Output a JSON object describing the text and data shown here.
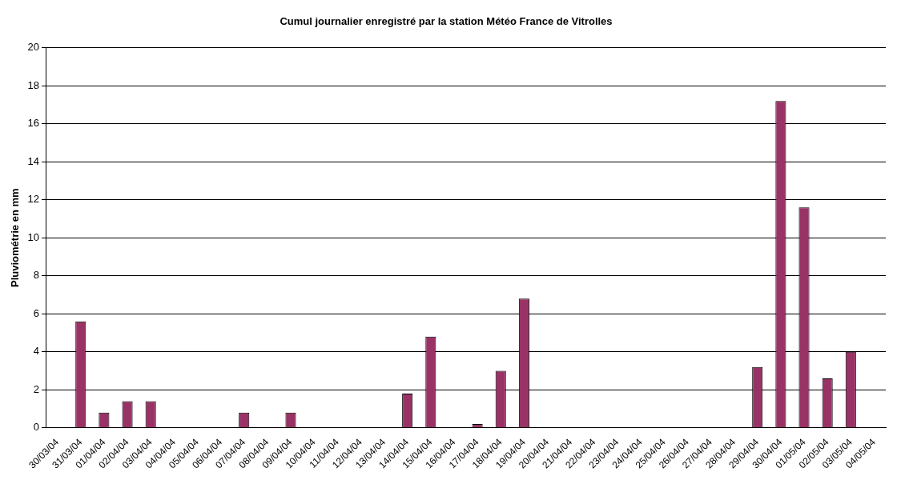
{
  "chart_data": {
    "type": "bar",
    "title": "Cumul journalier enregistré par la station Météo France de Vitrolles",
    "ylabel": "Pluviométrie en mm",
    "categories": [
      "30/03/04",
      "31/03/04",
      "01/04/04",
      "02/04/04",
      "03/04/04",
      "04/04/04",
      "05/04/04",
      "06/04/04",
      "07/04/04",
      "08/04/04",
      "09/04/04",
      "10/04/04",
      "11/04/04",
      "12/04/04",
      "13/04/04",
      "14/04/04",
      "15/04/04",
      "16/04/04",
      "17/04/04",
      "18/04/04",
      "19/04/04",
      "20/04/04",
      "21/04/04",
      "22/04/04",
      "23/04/04",
      "24/04/04",
      "25/04/04",
      "26/04/04",
      "27/04/04",
      "28/04/04",
      "29/04/04",
      "30/04/04",
      "01/05/04",
      "02/05/04",
      "03/05/04",
      "04/05/04"
    ],
    "values": [
      0,
      5.6,
      0.8,
      1.4,
      1.4,
      0,
      0,
      0,
      0.8,
      0,
      0.8,
      0,
      0,
      0,
      0,
      1.8,
      4.8,
      0,
      0.2,
      3.0,
      6.8,
      0,
      0,
      0,
      0,
      0,
      0,
      0,
      0,
      0,
      3.2,
      17.2,
      11.6,
      2.6,
      4.0,
      0
    ],
    "color": "#993366",
    "ylim": [
      0,
      20
    ],
    "yticks": [
      0,
      2,
      4,
      6,
      8,
      10,
      12,
      14,
      16,
      18,
      20
    ],
    "grid": "y",
    "legend": false
  }
}
